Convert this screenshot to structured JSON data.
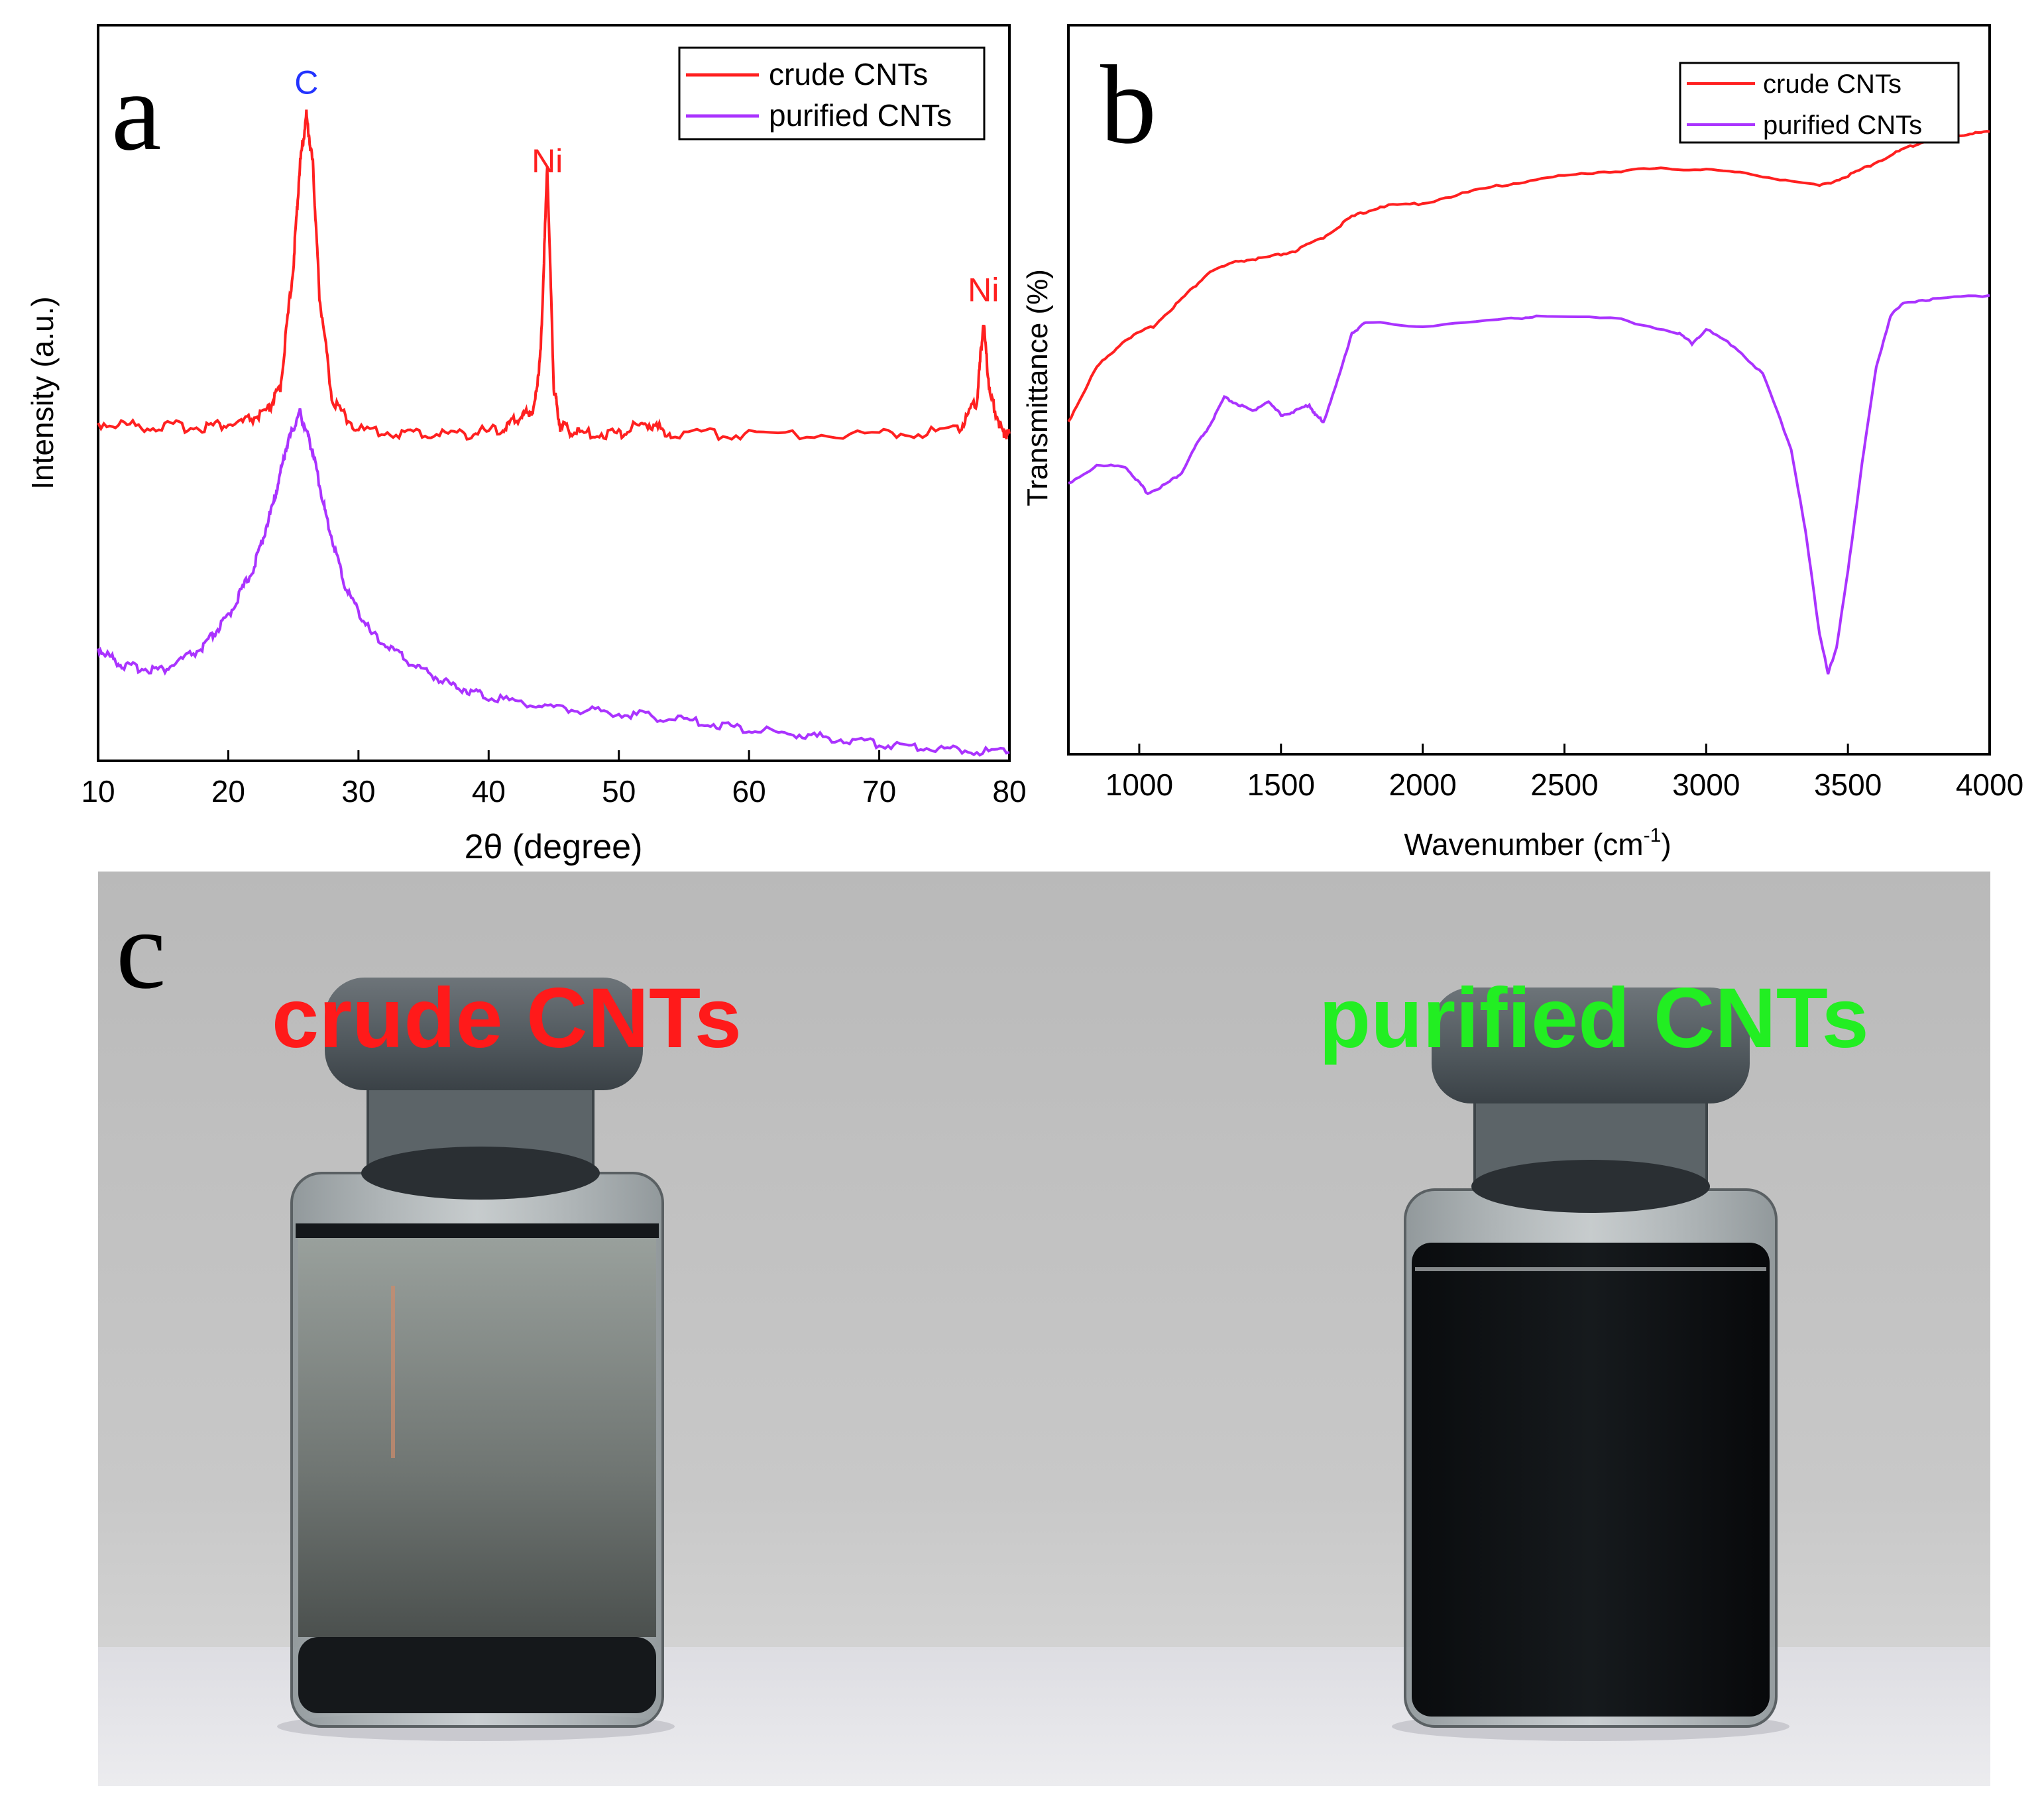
{
  "colors": {
    "crude": "#ff2020",
    "purified": "#aa33ff",
    "peak_c": "#2233ff",
    "peak_ni": "#ff2020",
    "photo_crude_label": "#ff1a1a",
    "photo_purified_label": "#22ee22"
  },
  "chart_data": [
    {
      "panel": "a",
      "type": "line",
      "xlabel": "2θ (degree)",
      "ylabel": "Intensity (a.u.)",
      "xlim": [
        10,
        80
      ],
      "ylim": [
        0,
        10
      ],
      "xticks": [
        "10",
        "20",
        "30",
        "40",
        "50",
        "60",
        "70",
        "80"
      ],
      "grid": false,
      "legend": {
        "placement": "top-right",
        "entries": [
          "crude CNTs",
          "purified CNTs"
        ]
      },
      "annotations": [
        {
          "text": "C",
          "x": 26,
          "y": 9.2
        },
        {
          "text": "Ni",
          "x": 44.5,
          "y": 8.1
        },
        {
          "text": "Ni",
          "x": 78,
          "y": 6.3
        }
      ],
      "series": [
        {
          "name": "crude CNTs",
          "x": [
            10,
            14,
            18,
            21,
            23,
            24,
            25,
            25.5,
            26,
            26.5,
            27,
            28,
            30,
            34,
            38,
            41,
            42.5,
            43.5,
            44,
            44.5,
            45,
            45.5,
            47,
            50,
            52,
            54,
            60,
            70,
            76,
            77.5,
            78,
            78.5,
            79.5,
            80
          ],
          "y": [
            4.6,
            4.55,
            4.55,
            4.6,
            4.75,
            5.1,
            6.8,
            8.2,
            8.9,
            8.2,
            6.4,
            4.9,
            4.5,
            4.45,
            4.45,
            4.5,
            4.7,
            4.8,
            5.6,
            8.2,
            5.1,
            4.55,
            4.45,
            4.45,
            4.6,
            4.45,
            4.45,
            4.45,
            4.5,
            4.9,
            6.0,
            5.0,
            4.45,
            4.45
          ]
        },
        {
          "name": "purified CNTs",
          "x": [
            10,
            12,
            15,
            18,
            20,
            22,
            23.5,
            24.5,
            25.5,
            26.5,
            27.5,
            29,
            31,
            34,
            37,
            40,
            45,
            50,
            55,
            60,
            65,
            70,
            75,
            80
          ],
          "y": [
            1.45,
            1.2,
            1.15,
            1.45,
            1.9,
            2.6,
            3.5,
            4.3,
            4.75,
            4.2,
            3.3,
            2.3,
            1.65,
            1.25,
            0.95,
            0.78,
            0.62,
            0.55,
            0.45,
            0.32,
            0.22,
            0.12,
            0.05,
            0.0
          ]
        }
      ]
    },
    {
      "panel": "b",
      "type": "line",
      "xlabel": "Wavenumber (cm",
      "xlabel_sup": "-1",
      "xlabel_close": ")",
      "ylabel": "Transmittance (%)",
      "xlim": [
        750,
        4000
      ],
      "ylim": [
        0,
        10
      ],
      "xticks": [
        "1000",
        "1500",
        "2000",
        "2500",
        "3000",
        "3500",
        "4000"
      ],
      "grid": false,
      "legend": {
        "placement": "top-right",
        "entries": [
          "crude CNTs",
          "purified CNTs"
        ]
      },
      "series": [
        {
          "name": "crude CNTs",
          "x": [
            750,
            850,
            950,
            1050,
            1150,
            1250,
            1350,
            1450,
            1550,
            1650,
            1750,
            1850,
            2000,
            2200,
            2400,
            2600,
            2800,
            3000,
            3200,
            3400,
            3500,
            3600,
            3700,
            3800,
            3900,
            4000
          ],
          "y": [
            4.6,
            5.4,
            5.8,
            6.0,
            6.4,
            6.8,
            6.95,
            7.0,
            7.1,
            7.3,
            7.6,
            7.75,
            7.8,
            8.0,
            8.15,
            8.25,
            8.3,
            8.3,
            8.2,
            8.05,
            8.2,
            8.4,
            8.6,
            8.75,
            8.8,
            8.85
          ]
        },
        {
          "name": "purified CNTs",
          "x": [
            750,
            850,
            950,
            1000,
            1030,
            1100,
            1150,
            1200,
            1250,
            1300,
            1350,
            1400,
            1450,
            1500,
            1550,
            1600,
            1620,
            1650,
            1700,
            1750,
            1800,
            2000,
            2300,
            2400,
            2700,
            2900,
            2950,
            3000,
            3100,
            3200,
            3300,
            3350,
            3400,
            3430,
            3460,
            3500,
            3550,
            3600,
            3650,
            3700,
            3800,
            4000
          ],
          "y": [
            3.7,
            3.95,
            3.95,
            3.7,
            3.55,
            3.7,
            3.85,
            4.25,
            4.55,
            4.95,
            4.85,
            4.75,
            4.9,
            4.7,
            4.75,
            4.85,
            4.7,
            4.6,
            5.2,
            5.9,
            6.05,
            6.0,
            6.1,
            6.15,
            6.1,
            5.9,
            5.75,
            5.95,
            5.7,
            5.3,
            4.2,
            3.0,
            1.5,
            0.9,
            1.3,
            2.4,
            4.0,
            5.4,
            6.15,
            6.35,
            6.4,
            6.45
          ]
        }
      ]
    }
  ],
  "panel_a": {
    "letter": "a",
    "legend_crude": "crude CNTs",
    "legend_purified": "purified CNTs"
  },
  "panel_b": {
    "letter": "b",
    "legend_crude": "crude CNTs",
    "legend_purified": "purified CNTs"
  },
  "panel_c": {
    "letter": "c",
    "label_crude": "crude CNTs",
    "label_purified": "purified CNTs"
  }
}
